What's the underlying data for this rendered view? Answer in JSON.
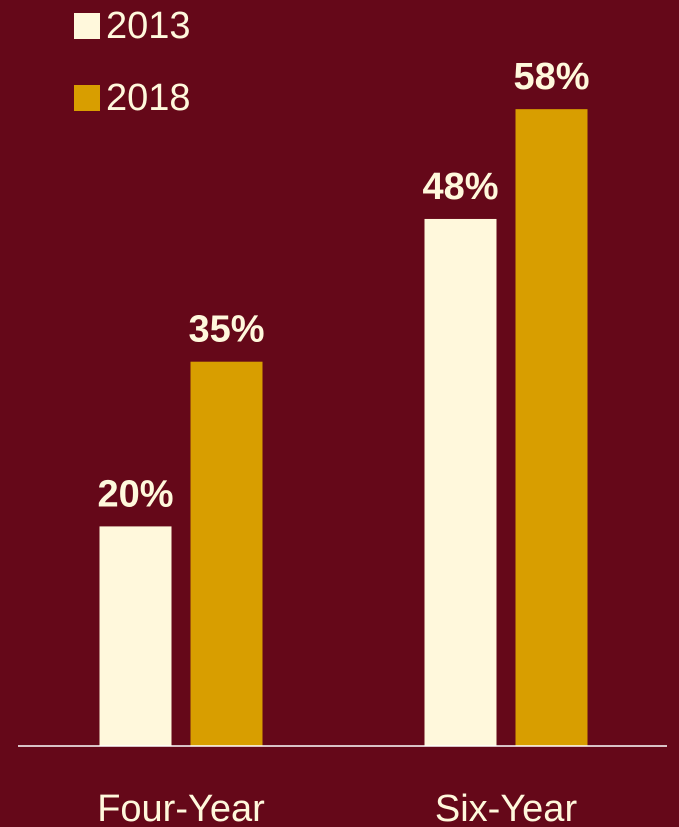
{
  "chart_data": {
    "type": "bar",
    "categories": [
      "Four-Year",
      "Six-Year"
    ],
    "series": [
      {
        "name": "2013",
        "values": [
          20,
          48
        ],
        "color": "#fff8dc"
      },
      {
        "name": "2018",
        "values": [
          35,
          58
        ],
        "color": "#d89e00"
      }
    ],
    "value_suffix": "%",
    "ylim": [
      0,
      60
    ],
    "legend_position": "top-left",
    "grid": false,
    "title": "",
    "xlabel": "",
    "ylabel": ""
  },
  "colors": {
    "background": "#650819",
    "text": "#fff8dc",
    "axis": "#ffffff"
  }
}
